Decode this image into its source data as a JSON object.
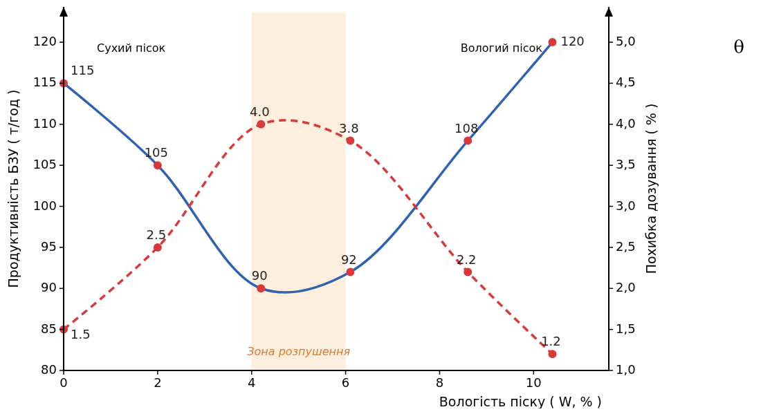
{
  "chart_data": {
    "type": "line",
    "xlabel": "Вологість піску ( W, % )",
    "ylabel": "Продуктивність БЗУ ( т/год )",
    "y2label": "Похибка дозування ( % )",
    "xlim": [
      0,
      11.6
    ],
    "xticks": [
      0,
      2,
      4,
      6,
      8,
      10
    ],
    "ylim": [
      80,
      124.3
    ],
    "yticks": [
      80,
      85,
      90,
      95,
      100,
      105,
      110,
      115,
      120
    ],
    "y2lim": [
      1.0,
      5.43
    ],
    "y2ticks": [
      {
        "value": 1.0,
        "label": "1,0"
      },
      {
        "value": 1.5,
        "label": "1,5"
      },
      {
        "value": 2.0,
        "label": "2,0"
      },
      {
        "value": 2.5,
        "label": "2,5"
      },
      {
        "value": 3.0,
        "label": "3,0"
      },
      {
        "value": 3.5,
        "label": "3,5"
      },
      {
        "value": 4.0,
        "label": "4,0"
      },
      {
        "value": 4.5,
        "label": "4,5"
      },
      {
        "value": 5.0,
        "label": "5,0"
      }
    ],
    "series": [
      {
        "color": "#2f63ae",
        "line_style": "solid",
        "x": [
          0,
          2,
          4.2,
          6.1,
          8.6,
          10.4
        ],
        "values": [
          115,
          105,
          90,
          92,
          108,
          120
        ],
        "colors": [
          "#d63a3c",
          "#d63a3c",
          "#d63a3c",
          "#d63a3c",
          "#d63a3c",
          "#d63a3c"
        ],
        "value_labels": [
          "115",
          "105",
          "90",
          "92",
          "108",
          "120"
        ]
      },
      {
        "color": "#d63a3c",
        "line_style": "dashed",
        "axis": "y2",
        "x": [
          0,
          2,
          4.2,
          6.1,
          8.6,
          10.4
        ],
        "values": [
          1.5,
          2.5,
          4.0,
          3.8,
          2.2,
          1.2
        ],
        "value_labels": [
          "1.5",
          "2.5",
          "4.0",
          "3.8",
          "2.2",
          "1.2"
        ]
      }
    ],
    "marker": "circle",
    "grid": false,
    "bands": [
      {
        "axis": "x",
        "from": 4,
        "to": 6,
        "label": "Зона розпушення",
        "color": "#fdeedd"
      }
    ],
    "annotations": [
      "Сухий пісок",
      "Вологий пісок",
      "θ"
    ]
  }
}
